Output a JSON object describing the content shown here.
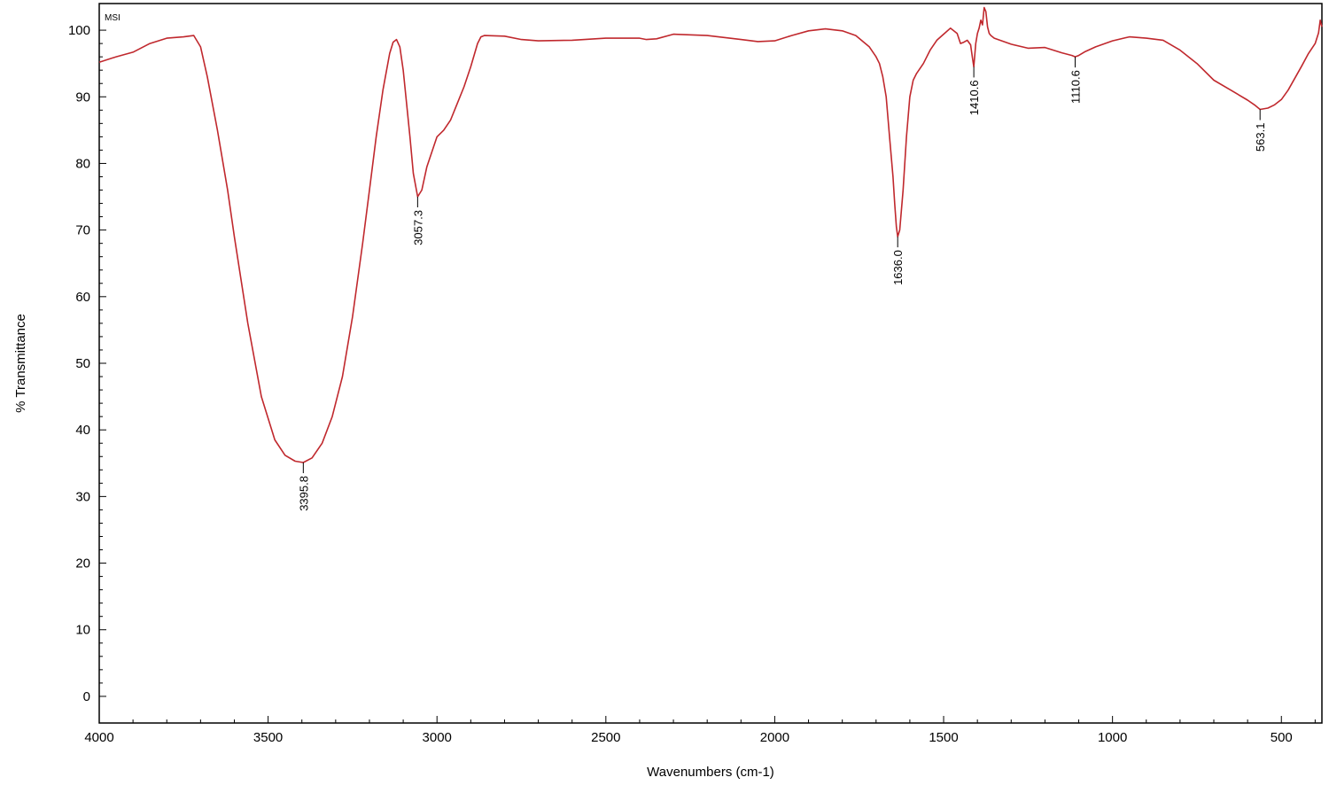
{
  "chart_data": {
    "type": "line",
    "tag": "MSI",
    "xlabel": "Wavenumbers (cm-1)",
    "ylabel": "% Transmittance",
    "xlim": [
      4000,
      380
    ],
    "ylim": [
      -4,
      104
    ],
    "x_ticks": [
      4000,
      3500,
      3000,
      2500,
      2000,
      1500,
      1000,
      500
    ],
    "y_ticks": [
      0,
      10,
      20,
      30,
      40,
      50,
      60,
      70,
      80,
      90,
      100
    ],
    "grid": false,
    "line_color": "#c0282d",
    "series": [
      {
        "x": [
          4000,
          3950,
          3900,
          3850,
          3800,
          3750,
          3720,
          3700,
          3680,
          3650,
          3620,
          3600,
          3560,
          3520,
          3480,
          3450,
          3420,
          3395.8,
          3370,
          3340,
          3310,
          3280,
          3250,
          3220,
          3200,
          3180,
          3160,
          3140,
          3130,
          3120,
          3110,
          3100,
          3090,
          3080,
          3070,
          3057.3,
          3045,
          3030,
          3010,
          3000,
          2980,
          2960,
          2940,
          2920,
          2900,
          2880,
          2870,
          2860,
          2800,
          2750,
          2700,
          2600,
          2500,
          2400,
          2380,
          2350,
          2300,
          2200,
          2100,
          2050,
          2000,
          1950,
          1900,
          1850,
          1800,
          1760,
          1720,
          1700,
          1690,
          1680,
          1670,
          1660,
          1650,
          1645,
          1640,
          1636.0,
          1630,
          1620,
          1610,
          1600,
          1590,
          1580,
          1560,
          1540,
          1520,
          1500,
          1480,
          1460,
          1450,
          1440,
          1430,
          1420,
          1415,
          1410.6,
          1405,
          1400,
          1395,
          1390,
          1385,
          1380,
          1375,
          1370,
          1365,
          1360,
          1350,
          1300,
          1250,
          1200,
          1150,
          1120,
          1110.6,
          1100,
          1080,
          1050,
          1000,
          950,
          900,
          850,
          800,
          750,
          700,
          650,
          600,
          580,
          563.1,
          540,
          520,
          500,
          480,
          460,
          440,
          420,
          400,
          390,
          385,
          380
        ],
        "y": [
          95.2,
          96,
          96.7,
          98,
          98.8,
          99,
          99.2,
          97.5,
          93,
          85,
          76,
          69,
          56,
          45,
          38.5,
          36.2,
          35.3,
          35.1,
          35.8,
          38,
          42,
          48,
          57,
          68,
          76,
          84,
          91,
          96.5,
          98.2,
          98.6,
          97.5,
          94,
          89,
          84,
          78.5,
          75,
          76,
          79.5,
          82.5,
          84,
          85,
          86.5,
          89,
          91.5,
          94.5,
          98,
          99,
          99.2,
          99.1,
          98.6,
          98.4,
          98.5,
          98.8,
          98.8,
          98.6,
          98.7,
          99.4,
          99.2,
          98.6,
          98.3,
          98.4,
          99.2,
          99.9,
          100.2,
          99.9,
          99.2,
          97.5,
          96,
          95,
          93,
          90,
          84,
          78,
          74,
          70.5,
          69,
          70,
          76,
          84,
          90,
          92.5,
          93.5,
          95,
          97,
          98.5,
          99.4,
          100.3,
          99.5,
          98,
          98.2,
          98.5,
          97.8,
          96,
          94.5,
          98,
          99.5,
          100.3,
          101.5,
          100.8,
          103.4,
          102.8,
          100.5,
          99.5,
          99.2,
          98.8,
          97.9,
          97.3,
          97.4,
          96.6,
          96.2,
          96,
          96.2,
          96.8,
          97.5,
          98.4,
          99,
          98.8,
          98.5,
          97,
          95,
          92.5,
          91,
          89.5,
          88.8,
          88.1,
          88.3,
          88.8,
          89.6,
          91,
          92.8,
          94.6,
          96.5,
          98,
          99.6,
          101.5,
          100.5
        ]
      }
    ],
    "annotations": [
      {
        "x": 3395.8,
        "y": 35.1,
        "text": "3395.8"
      },
      {
        "x": 3057.3,
        "y": 75,
        "text": "3057.3"
      },
      {
        "x": 1636.0,
        "y": 69,
        "text": "1636.0"
      },
      {
        "x": 1410.6,
        "y": 94.5,
        "text": "1410.6"
      },
      {
        "x": 1110.6,
        "y": 96,
        "text": "1110.6"
      },
      {
        "x": 563.1,
        "y": 88.1,
        "text": "563.1"
      }
    ]
  }
}
